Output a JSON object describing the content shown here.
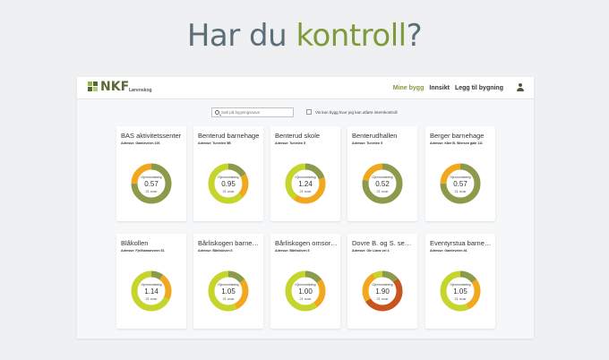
{
  "headline": {
    "part1": "Har du ",
    "part2": "kontroll",
    "part3": "?"
  },
  "colors": {
    "olive": "#8c9a4b",
    "lime": "#c6d52b",
    "orange": "#f2a81e",
    "rust": "#c8551f",
    "accent": "#7f9a3c"
  },
  "app": {
    "logo_text": "NKF",
    "org": "Lørenskog",
    "nav": {
      "mine": "Mine bygg",
      "innsikt": "Innsikt",
      "legg": "Legg til bygning"
    },
    "user_icon": "user-icon",
    "search_placeholder": "Søk på bygningsnavn",
    "filter_label": "Vis kun bygg hvor jeg kan utføre internkontroll"
  },
  "cards": [
    {
      "name": "BAS aktivitetssenter",
      "address": "Adresse: Gamleveien 106",
      "label": "Gjennomføring",
      "value": "0.57",
      "count": "21 svar",
      "segments": [
        {
          "color": "#8c9a4b",
          "fraction": 0.75
        },
        {
          "color": "#f2a81e",
          "fraction": 0.25
        }
      ]
    },
    {
      "name": "Benterud barnehage",
      "address": "Adresse: Turveien 5B",
      "label": "Gjennomføring",
      "value": "0.95",
      "count": "21 svar",
      "segments": [
        {
          "color": "#8c9a4b",
          "fraction": 0.17
        },
        {
          "color": "#f2a81e",
          "fraction": 0.2
        },
        {
          "color": "#c6d52b",
          "fraction": 0.63
        }
      ]
    },
    {
      "name": "Benterud skole",
      "address": "Adresse: Turveien 5",
      "label": "Gjennomføring",
      "value": "1.24",
      "count": "21 svar",
      "segments": [
        {
          "color": "#8c9a4b",
          "fraction": 0.2
        },
        {
          "color": "#f2a81e",
          "fraction": 0.4
        },
        {
          "color": "#c6d52b",
          "fraction": 0.4
        }
      ]
    },
    {
      "name": "Benterudhallen",
      "address": "Adresse: Turveien 5",
      "label": "Gjennomføring",
      "value": "0.52",
      "count": "21 svar",
      "segments": [
        {
          "color": "#8c9a4b",
          "fraction": 0.78
        },
        {
          "color": "#f2a81e",
          "fraction": 0.22
        }
      ]
    },
    {
      "name": "Berger barnehage",
      "address": "Adresse: Kåre B. Wiersen gate 111",
      "label": "Gjennomføring",
      "value": "0.57",
      "count": "21 svar",
      "segments": [
        {
          "color": "#8c9a4b",
          "fraction": 0.75
        },
        {
          "color": "#f2a81e",
          "fraction": 0.25
        }
      ]
    },
    {
      "name": "Blåkollen",
      "address": "Adresse: Fjellhamarveien 51",
      "label": "Gjennomføring",
      "value": "1.14",
      "count": "21 svar",
      "segments": [
        {
          "color": "#8c9a4b",
          "fraction": 0.1
        },
        {
          "color": "#f2a81e",
          "fraction": 0.22
        },
        {
          "color": "#c6d52b",
          "fraction": 0.68
        }
      ]
    },
    {
      "name": "Bårliskogen barnehage",
      "address": "Adresse: Bårliskiven 6",
      "label": "Gjennomføring",
      "value": "1.05",
      "count": "21 svar",
      "segments": [
        {
          "color": "#8c9a4b",
          "fraction": 0.15
        },
        {
          "color": "#f2a81e",
          "fraction": 0.28
        },
        {
          "color": "#c6d52b",
          "fraction": 0.57
        }
      ]
    },
    {
      "name": "Bårliskogen omsorgssenter",
      "address": "Adresse: Bårliskiven 5",
      "label": "Gjennomføring",
      "value": "1.00",
      "count": "21 svar",
      "segments": [
        {
          "color": "#8c9a4b",
          "fraction": 0.15
        },
        {
          "color": "#f2a81e",
          "fraction": 0.25
        },
        {
          "color": "#c6d52b",
          "fraction": 0.6
        }
      ]
    },
    {
      "name": "Dovre B. og S. senter",
      "address": "Adresse: Ole Lians vei 4",
      "label": "Gjennomføring",
      "value": "1.90",
      "count": "21 svar",
      "segments": [
        {
          "color": "#8c9a4b",
          "fraction": 0.14
        },
        {
          "color": "#c8551f",
          "fraction": 0.52
        },
        {
          "color": "#f2a81e",
          "fraction": 0.26
        },
        {
          "color": "#c6d52b",
          "fraction": 0.08
        }
      ]
    },
    {
      "name": "Eventyrstua barnehage",
      "address": "Adresse: Gamleveien 46",
      "label": "Gjennomføring",
      "value": "1.05",
      "count": "21 svar",
      "segments": [
        {
          "color": "#8c9a4b",
          "fraction": 0.15
        },
        {
          "color": "#f2a81e",
          "fraction": 0.28
        },
        {
          "color": "#c6d52b",
          "fraction": 0.57
        }
      ]
    }
  ]
}
